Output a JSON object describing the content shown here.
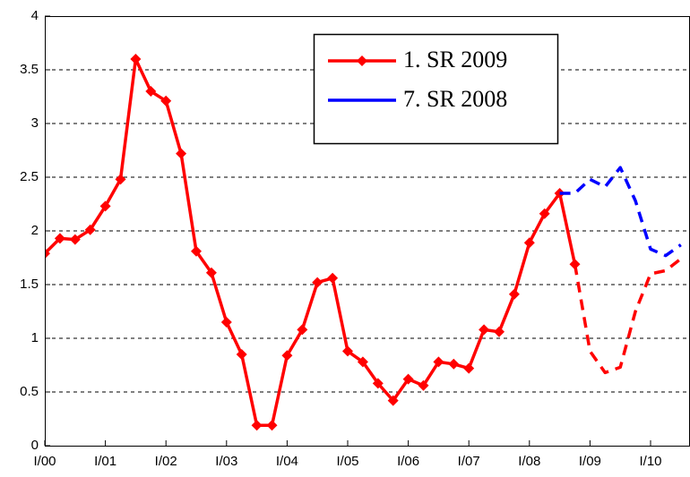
{
  "chart_data": {
    "type": "line",
    "categories": [
      "I/00",
      null,
      null,
      null,
      "I/01",
      null,
      null,
      null,
      "I/02",
      null,
      null,
      null,
      "I/03",
      null,
      null,
      null,
      "I/04",
      null,
      null,
      null,
      "I/05",
      null,
      null,
      null,
      "I/06",
      null,
      null,
      null,
      "I/07",
      null,
      null,
      null,
      "I/08",
      null,
      null,
      null,
      "I/09",
      null,
      null,
      null,
      "I/10",
      null,
      null
    ],
    "series": [
      {
        "name": "1. SR 2009",
        "color": "#ff0000",
        "marker": "diamond",
        "dashed_from": 35,
        "values": [
          1.79,
          1.93,
          1.92,
          2.01,
          2.23,
          2.48,
          3.6,
          3.3,
          3.21,
          2.72,
          1.81,
          1.61,
          1.15,
          0.85,
          0.19,
          0.19,
          0.84,
          1.08,
          1.52,
          1.56,
          0.88,
          0.78,
          0.58,
          0.42,
          0.62,
          0.56,
          0.78,
          0.76,
          0.72,
          1.08,
          1.06,
          1.41,
          1.89,
          2.16,
          2.35,
          1.69,
          0.88,
          0.68,
          0.73,
          1.25,
          1.6,
          1.63,
          1.74
        ]
      },
      {
        "name": "7. SR 2008",
        "color": "#0000ff",
        "marker": "none",
        "dashed_from": 34,
        "values": [
          null,
          null,
          null,
          null,
          null,
          null,
          null,
          null,
          null,
          null,
          null,
          null,
          null,
          null,
          null,
          null,
          null,
          null,
          null,
          null,
          null,
          null,
          null,
          null,
          null,
          null,
          null,
          null,
          null,
          null,
          null,
          null,
          null,
          null,
          2.35,
          2.35,
          2.48,
          2.41,
          2.59,
          2.28,
          1.83,
          1.77,
          1.87
        ]
      }
    ],
    "ylim": [
      0,
      4
    ],
    "yticks": [
      0,
      0.5,
      1,
      1.5,
      2,
      2.5,
      3,
      3.5,
      4
    ],
    "grid": true,
    "legend": "top-right"
  }
}
